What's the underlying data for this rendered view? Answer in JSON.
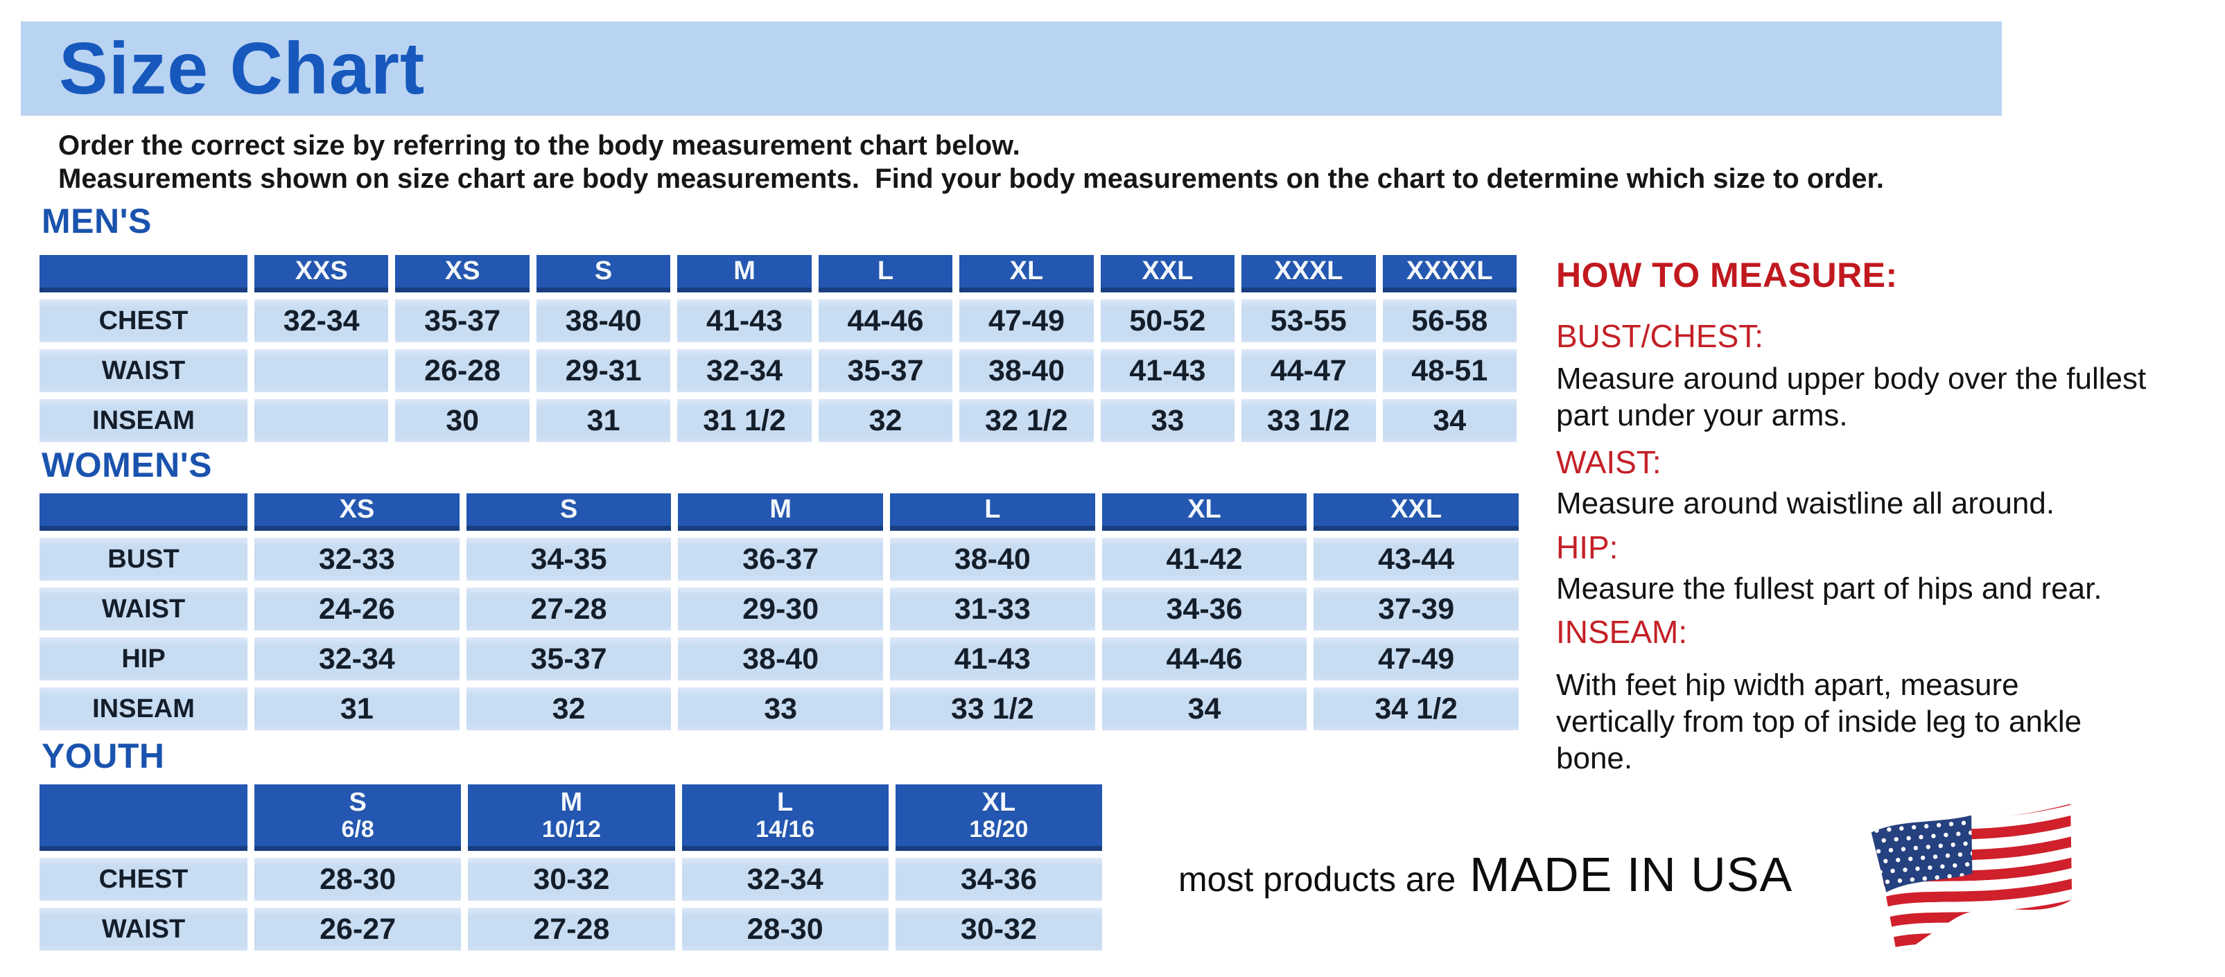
{
  "page": {
    "title": "Size Chart",
    "intro_line1": "Order the correct size by referring to the body measurement chart below.",
    "intro_line2": "Measurements shown on size chart are body measurements.  Find your body measurements on the chart to determine which size to order."
  },
  "tables": {
    "mens": {
      "label": "MEN'S",
      "columns": [
        "XXS",
        "XS",
        "S",
        "M",
        "L",
        "XL",
        "XXL",
        "XXXL",
        "XXXXL"
      ],
      "rows": [
        {
          "label": "CHEST",
          "values": [
            "32-34",
            "35-37",
            "38-40",
            "41-43",
            "44-46",
            "47-49",
            "50-52",
            "53-55",
            "56-58"
          ]
        },
        {
          "label": "WAIST",
          "values": [
            "",
            "26-28",
            "29-31",
            "32-34",
            "35-37",
            "38-40",
            "41-43",
            "44-47",
            "48-51"
          ]
        },
        {
          "label": "INSEAM",
          "values": [
            "",
            "30",
            "31",
            "31 1/2",
            "32",
            "32 1/2",
            "33",
            "33 1/2",
            "34"
          ]
        }
      ]
    },
    "womens": {
      "label": "WOMEN'S",
      "columns": [
        "XS",
        "S",
        "M",
        "L",
        "XL",
        "XXL"
      ],
      "rows": [
        {
          "label": "BUST",
          "values": [
            "32-33",
            "34-35",
            "36-37",
            "38-40",
            "41-42",
            "43-44"
          ]
        },
        {
          "label": "WAIST",
          "values": [
            "24-26",
            "27-28",
            "29-30",
            "31-33",
            "34-36",
            "37-39"
          ]
        },
        {
          "label": "HIP",
          "values": [
            "32-34",
            "35-37",
            "38-40",
            "41-43",
            "44-46",
            "47-49"
          ]
        },
        {
          "label": "INSEAM",
          "values": [
            "31",
            "32",
            "33",
            "33 1/2",
            "34",
            "34 1/2"
          ]
        }
      ]
    },
    "youth": {
      "label": "YOUTH",
      "columns": [
        {
          "size": "S",
          "range": "6/8"
        },
        {
          "size": "M",
          "range": "10/12"
        },
        {
          "size": "L",
          "range": "14/16"
        },
        {
          "size": "XL",
          "range": "18/20"
        }
      ],
      "rows": [
        {
          "label": "CHEST",
          "values": [
            "28-30",
            "30-32",
            "32-34",
            "34-36"
          ]
        },
        {
          "label": "WAIST",
          "values": [
            "26-27",
            "27-28",
            "28-30",
            "30-32"
          ]
        }
      ]
    }
  },
  "how_to_measure": {
    "title": "HOW TO MEASURE:",
    "sections": [
      {
        "heading": "BUST/CHEST:",
        "text": "Measure around upper body over the fullest part under your arms."
      },
      {
        "heading": "WAIST:",
        "text": "Measure around waistline all around."
      },
      {
        "heading": "HIP:",
        "text": "Measure the fullest part of hips and rear."
      },
      {
        "heading": "INSEAM:",
        "text": "With feet hip width apart, measure vertically from top of inside leg to ankle bone."
      }
    ]
  },
  "footer": {
    "prefix": "most products are",
    "emphasis": "MADE IN USA",
    "flag_icon": "us-flag-icon"
  },
  "colors": {
    "band_blue": "#b9d3f2",
    "heading_blue": "#1a53ae",
    "table_header_blue": "#2357b1",
    "table_header_border": "#183e80",
    "cell_blue": "#c8dcf2",
    "accent_red": "#c32026",
    "flag_red": "#cf202b",
    "flag_navy": "#26417f",
    "text_dark": "#141e2a"
  }
}
